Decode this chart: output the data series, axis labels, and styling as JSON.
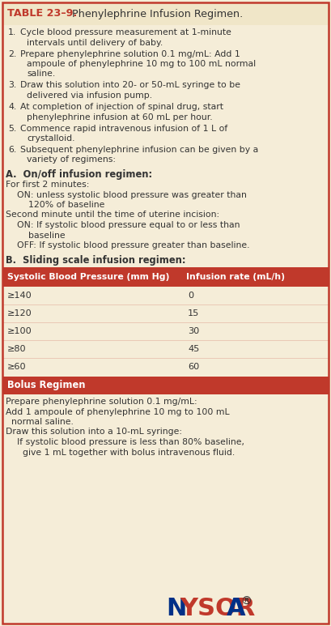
{
  "title_bold": "TABLE 23–9.",
  "title_normal": "  Phenylephrine Infusion Regimen.",
  "title_color": "#c0392b",
  "title_bg": "#f0e6c8",
  "header_bg": "#c0392b",
  "header_text_color": "#ffffff",
  "body_bg": "#f5edd8",
  "border_color": "#c0392b",
  "text_color": "#333333",
  "numbered_items": [
    [
      "Cycle blood pressure measurement at 1-minute",
      "intervals until delivery of baby."
    ],
    [
      "Prepare phenylephrine solution 0.1 mg/mL: Add 1",
      "ampoule of phenylephrine 10 mg to 100 mL normal",
      "saline."
    ],
    [
      "Draw this solution into 20- or 50-mL syringe to be",
      "delivered via infusion pump."
    ],
    [
      "At completion of injection of spinal drug, start",
      "phenylephrine infusion at 60 mL per hour."
    ],
    [
      "Commence rapid intravenous infusion of 1 L of",
      "crystalloid."
    ],
    [
      "Subsequent phenylephrine infusion can be given by a",
      "variety of regimens:"
    ]
  ],
  "section_a_header": "A.  On/off infusion regimen:",
  "section_a_lines": [
    "For first 2 minutes:",
    "    ON: unless systolic blood pressure was greater than",
    "        120% of baseline",
    "Second minute until the time of uterine incision:",
    "    ON: If systolic blood pressure equal to or less than",
    "        baseline",
    "    OFF: If systolic blood pressure greater than baseline."
  ],
  "section_b_header": "B.  Sliding scale infusion regimen:",
  "table_col1_header": "Systolic Blood Pressure (mm Hg)",
  "table_col2_header": "Infusion rate (mL/h)",
  "table_rows": [
    [
      "≥140",
      "0"
    ],
    [
      "≥120",
      "15"
    ],
    [
      "≥100",
      "30"
    ],
    [
      "≥80",
      "45"
    ],
    [
      "≥60",
      "60"
    ]
  ],
  "bolus_header": "Bolus Regimen",
  "bolus_lines": [
    "Prepare phenylephrine solution 0.1 mg/mL:",
    "Add 1 ampoule of phenylephrine 10 mg to 100 mL",
    "  normal saline.",
    "Draw this solution into a 10-mL syringe:",
    "    If systolic blood pressure is less than 80% baseline,",
    "      give 1 mL together with bolus intravenous fluid."
  ],
  "watermark_color_N": "#003087",
  "watermark_color_rest": "#c0392b",
  "watermark_color_reg": "#333333",
  "fig_width": 4.09,
  "fig_height": 7.73,
  "dpi": 100
}
